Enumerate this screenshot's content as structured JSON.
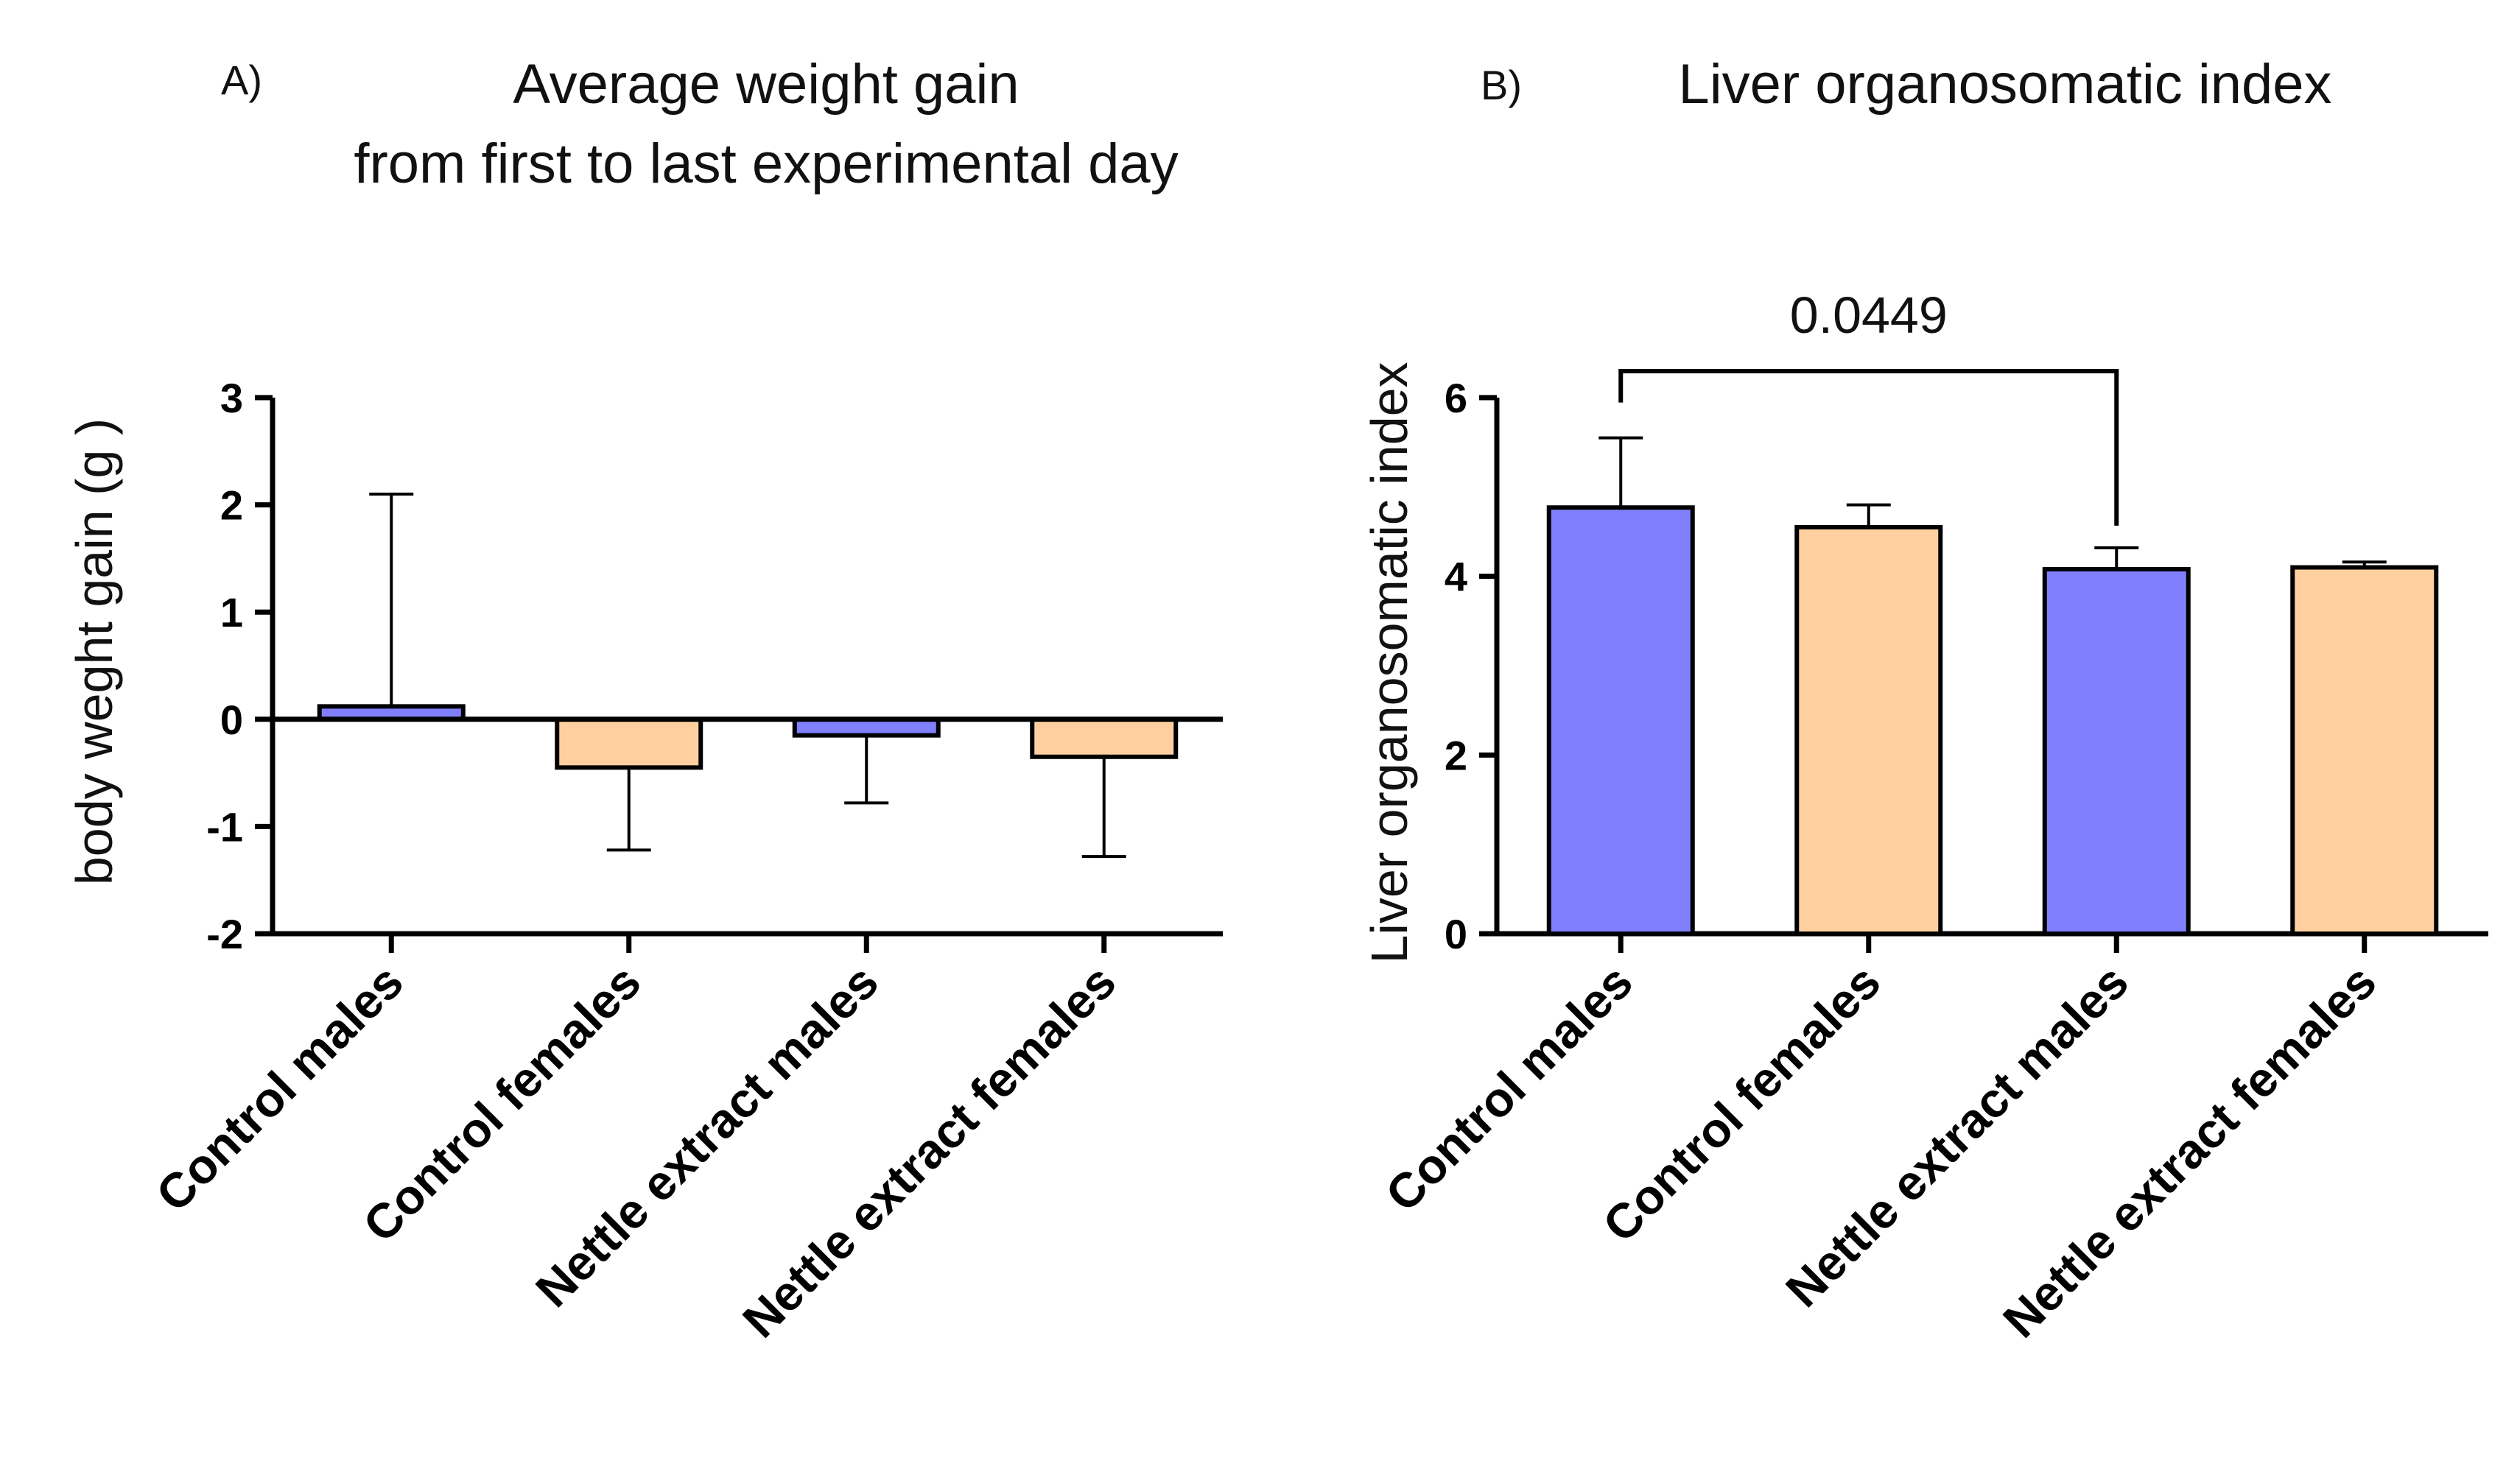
{
  "colors": {
    "males": "#8080ff",
    "females": "#fed0a0"
  },
  "chart_data": [
    {
      "panel": "A)",
      "type": "bar",
      "title_lines": [
        "Average weight gain",
        "from first to last experimental day"
      ],
      "ylabel": "body weght gain (g )",
      "xlabel": "",
      "ylim": [
        -2,
        3
      ],
      "yticks": [
        3,
        2,
        1,
        0,
        -1,
        -2
      ],
      "ytick_labels": [
        "3",
        "2",
        "1",
        "0",
        "-1",
        "-2"
      ],
      "categories": [
        "Control males",
        "Control females",
        "Nettle extract males",
        "Nettle extract females"
      ],
      "values": [
        0.12,
        -0.45,
        -0.15,
        -0.35
      ],
      "error_tips": [
        2.1,
        -1.22,
        -0.78,
        -1.28
      ],
      "color_keys": [
        "males",
        "females",
        "males",
        "females"
      ]
    },
    {
      "panel": "B)",
      "type": "bar",
      "title_lines": [
        "Liver organosomatic index"
      ],
      "ylabel": "Liver organosomatic index",
      "xlabel": "",
      "ylim": [
        0,
        6
      ],
      "yticks": [
        6,
        4,
        2,
        0
      ],
      "ytick_labels": [
        "6",
        "4",
        "2",
        "0"
      ],
      "categories": [
        "Control males",
        "Control females",
        "Nettle extract males",
        "Nettle extract females"
      ],
      "values": [
        4.77,
        4.55,
        4.08,
        4.1
      ],
      "error_tips": [
        5.55,
        4.8,
        4.32,
        4.16
      ],
      "color_keys": [
        "males",
        "females",
        "males",
        "females"
      ],
      "significance": {
        "from_index": 0,
        "to_index": 2,
        "label": "0.0449"
      }
    }
  ]
}
